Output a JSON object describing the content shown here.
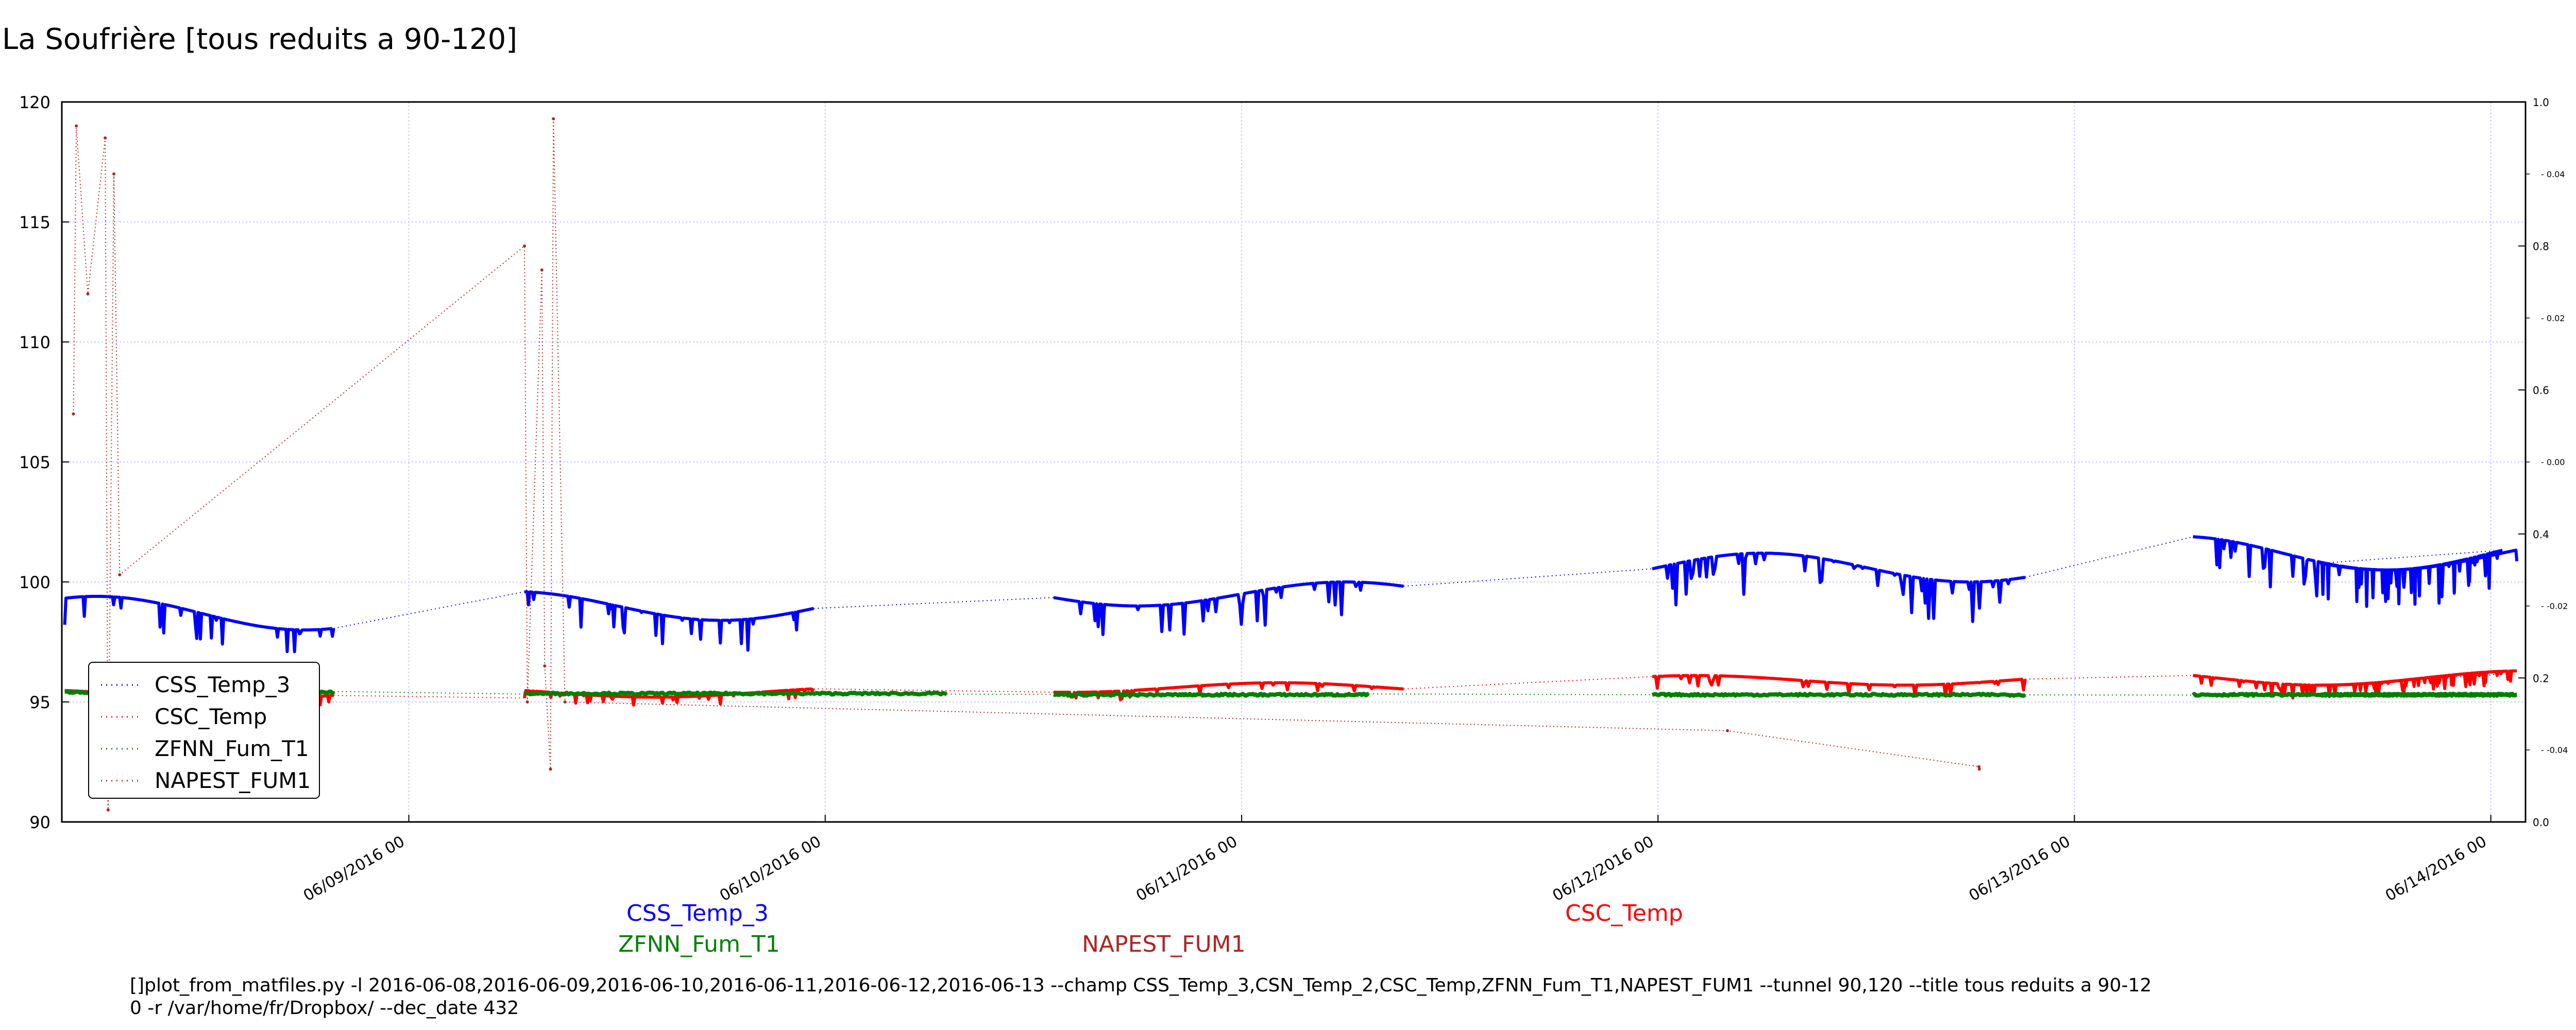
{
  "chart_data": {
    "type": "line",
    "title": "La Soufrière [tous reduits a 90-120]",
    "ylim": [
      90,
      120
    ],
    "yticks": [
      "90",
      "95",
      "100",
      "105",
      "110",
      "115",
      "120"
    ],
    "right_ticks_major": [
      "0.0",
      "0.2",
      "0.4",
      "0.6",
      "0.8",
      "1.0"
    ],
    "right_ticks_minor": [
      "-0.04",
      "-0.02",
      "0.00",
      "0.02",
      "0.04"
    ],
    "xlim": [
      "2016-06-08 04:00",
      "2016-06-14 02:00"
    ],
    "xticks": [
      "06/09/2016 00",
      "06/10/2016 00",
      "06/11/2016 00",
      "06/12/2016 00",
      "06/13/2016 00",
      "06/14/2016 00"
    ],
    "grid": true,
    "legend_position": "lower-left",
    "series": [
      {
        "name": "CSS_Temp_3",
        "color": "#0000ff",
        "segments": [
          {
            "start": "2016-06-08 04:10",
            "end": "2016-06-08 19:40",
            "level": 98.7,
            "ripple": 0.7,
            "dips": 1.2
          },
          {
            "start": "2016-06-09 06:40",
            "end": "2016-06-09 23:20",
            "level": 99.0,
            "ripple": 0.6,
            "dips": 1.3
          },
          {
            "start": "2016-06-10 13:10",
            "end": "2016-06-11 09:20",
            "level": 99.5,
            "ripple": 0.5,
            "dips": 1.5
          },
          {
            "start": "2016-06-11 23:40",
            "end": "2016-06-12 21:10",
            "level": 100.6,
            "ripple": 0.6,
            "dips": 1.8
          },
          {
            "start": "2016-06-13 06:50",
            "end": "2016-06-14 00:40",
            "level": 101.2,
            "ripple": 0.7,
            "dips": 1.6
          },
          {
            "start": "2016-06-13 14:10",
            "end": "2016-06-14 01:30",
            "level": 101.1,
            "ripple": 0.6,
            "dips": 1.6
          }
        ]
      },
      {
        "name": "CSC_Temp",
        "color": "#ff0000",
        "segments": [
          {
            "start": "2016-06-08 04:10",
            "end": "2016-06-08 19:40",
            "level": 95.3,
            "ripple": 0.2,
            "dips": 0.4
          },
          {
            "start": "2016-06-09 06:40",
            "end": "2016-06-09 23:20",
            "level": 95.4,
            "ripple": 0.2,
            "dips": 0.4
          },
          {
            "start": "2016-06-10 13:10",
            "end": "2016-06-11 09:20",
            "level": 95.6,
            "ripple": 0.2,
            "dips": 0.4
          },
          {
            "start": "2016-06-11 23:40",
            "end": "2016-06-12 21:10",
            "level": 95.9,
            "ripple": 0.2,
            "dips": 0.5
          },
          {
            "start": "2016-06-13 06:50",
            "end": "2016-06-14 00:40",
            "level": 96.0,
            "ripple": 0.3,
            "dips": 0.6
          },
          {
            "start": "2016-06-13 14:10",
            "end": "2016-06-14 01:30",
            "level": 96.0,
            "ripple": 0.3,
            "dips": 0.5
          }
        ]
      },
      {
        "name": "ZFNN_Fum_T1",
        "color": "#008000",
        "segments": [
          {
            "start": "2016-06-08 04:10",
            "end": "2016-06-08 19:40",
            "level": 95.4
          },
          {
            "start": "2016-06-09 06:40",
            "end": "2016-06-10 07:00",
            "level": 95.35
          },
          {
            "start": "2016-06-10 13:10",
            "end": "2016-06-11 07:20",
            "level": 95.3
          },
          {
            "start": "2016-06-11 23:40",
            "end": "2016-06-12 21:10",
            "level": 95.3
          },
          {
            "start": "2016-06-13 06:50",
            "end": "2016-06-14 00:40",
            "level": 95.3
          },
          {
            "start": "2016-06-13 14:10",
            "end": "2016-06-14 01:30",
            "level": 95.3
          }
        ]
      },
      {
        "name": "NAPEST_FUM1",
        "color": "#b22222",
        "points": [
          [
            "2016-06-08 04:40",
            107.0
          ],
          [
            "2016-06-08 04:50",
            119.0
          ],
          [
            "2016-06-08 05:30",
            112.0
          ],
          [
            "2016-06-08 06:30",
            118.5
          ],
          [
            "2016-06-08 06:40",
            90.5
          ],
          [
            "2016-06-08 07:00",
            117.0
          ],
          [
            "2016-06-08 07:20",
            100.3
          ],
          [
            "2016-06-09 06:40",
            114.0
          ],
          [
            "2016-06-09 06:50",
            95.0
          ],
          [
            "2016-06-09 07:40",
            113.0
          ],
          [
            "2016-06-09 07:50",
            96.5
          ],
          [
            "2016-06-09 08:10",
            92.2
          ],
          [
            "2016-06-09 08:20",
            119.3
          ],
          [
            "2016-06-09 09:00",
            95.0
          ],
          [
            "2016-06-12 04:00",
            93.8
          ],
          [
            "2016-06-12 18:30",
            92.3
          ],
          [
            "2016-06-12 18:31",
            92.2
          ]
        ]
      }
    ],
    "side_labels": [
      {
        "text": "CSS_Temp_3",
        "color": "#0000ff"
      },
      {
        "text": "ZFNN_Fum_T1",
        "color": "#008000"
      },
      {
        "text": "NAPEST_FUM1",
        "color": "#b22222"
      },
      {
        "text": "CSC_Temp",
        "color": "#ff0000"
      }
    ],
    "command": "[]plot_from_matfiles.py -l 2016-06-08,2016-06-09,2016-06-10,2016-06-11,2016-06-12,2016-06-13 --champ CSS_Temp_3,CSN_Temp_2,CSC_Temp,ZFNN_Fum_T1,NAPEST_FUM1 --tunnel 90,120 --title tous reduits a 90-12\n0 -r /var/home/fr/Dropbox/ --dec_date 432"
  }
}
